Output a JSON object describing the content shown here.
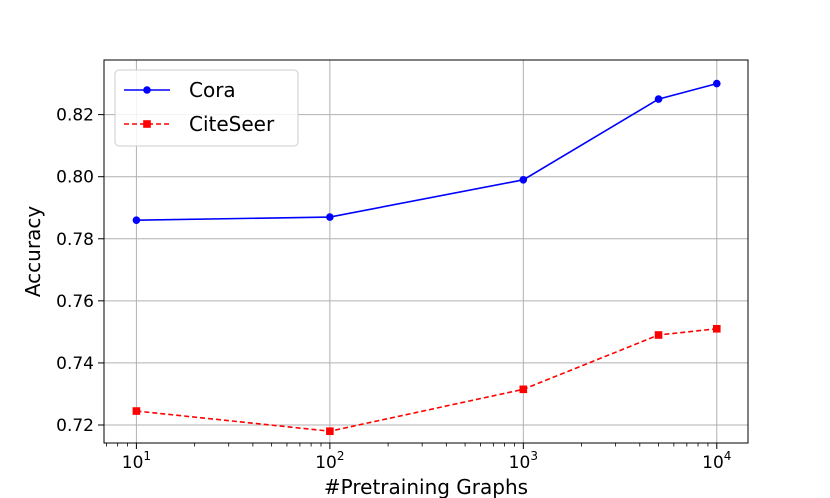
{
  "chart_data": {
    "type": "line",
    "title": "",
    "xlabel": "#Pretraining Graphs",
    "ylabel": "Accuracy",
    "xscale": "log",
    "x": [
      10,
      100,
      1000,
      5000,
      10000
    ],
    "xticks": [
      {
        "value": 10,
        "base": "10",
        "exp": "1"
      },
      {
        "value": 100,
        "base": "10",
        "exp": "2"
      },
      {
        "value": 1000,
        "base": "10",
        "exp": "3"
      },
      {
        "value": 10000,
        "base": "10",
        "exp": "4"
      }
    ],
    "yticks": [
      "0.72",
      "0.74",
      "0.76",
      "0.78",
      "0.80",
      "0.82"
    ],
    "xlim": [
      6.8,
      14500
    ],
    "ylim": [
      0.7142,
      0.8376
    ],
    "grid": true,
    "legend_position": "top-left",
    "series": [
      {
        "name": "Cora",
        "color": "#0000ff",
        "marker": "circle",
        "linestyle": "solid",
        "values": [
          0.786,
          0.787,
          0.799,
          0.825,
          0.83
        ]
      },
      {
        "name": "CiteSeer",
        "color": "#ff0000",
        "marker": "square",
        "linestyle": "dashed",
        "values": [
          0.7245,
          0.718,
          0.7315,
          0.749,
          0.751
        ]
      }
    ]
  }
}
